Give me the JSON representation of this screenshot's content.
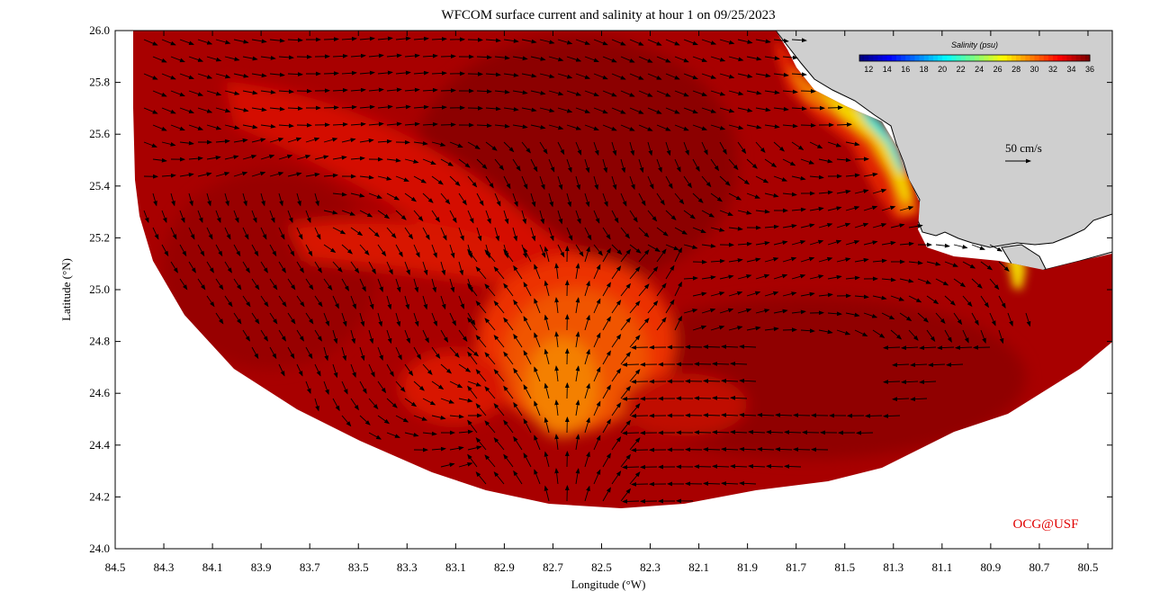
{
  "title": "WFCOM surface current and salinity at hour 1 on 09/25/2023",
  "x_axis": {
    "label": "Longitude (°W)",
    "range": [
      84.5,
      80.4
    ],
    "ticks": [
      "84.5",
      "84.3",
      "84.1",
      "83.9",
      "83.7",
      "83.5",
      "83.3",
      "83.1",
      "82.9",
      "82.7",
      "82.5",
      "82.3",
      "82.1",
      "81.9",
      "81.7",
      "81.5",
      "81.3",
      "81.1",
      "80.9",
      "80.7",
      "80.5"
    ]
  },
  "y_axis": {
    "label": "Latitude (°N)",
    "range": [
      24.0,
      26.0
    ],
    "ticks": [
      "24.0",
      "24.2",
      "24.4",
      "24.6",
      "24.8",
      "25.0",
      "25.2",
      "25.4",
      "25.6",
      "25.8",
      "26.0"
    ]
  },
  "colorbar": {
    "title": "Salinity (psu)",
    "ticks": [
      "12",
      "14",
      "16",
      "18",
      "20",
      "22",
      "24",
      "26",
      "28",
      "30",
      "32",
      "34",
      "36"
    ],
    "range": [
      11,
      36
    ]
  },
  "scale_arrow": {
    "label": "50 cm/s"
  },
  "credit": {
    "text": "OCG@USF",
    "color": "#e00000"
  },
  "colors": {
    "land": "#cfcfcf",
    "ocean_base": "#a80000",
    "deep_red": "#8c0000",
    "plume_orange": "#f07a00",
    "coastal_yellow": "#f4e400",
    "coastal_cyan": "#30e0d0"
  }
}
